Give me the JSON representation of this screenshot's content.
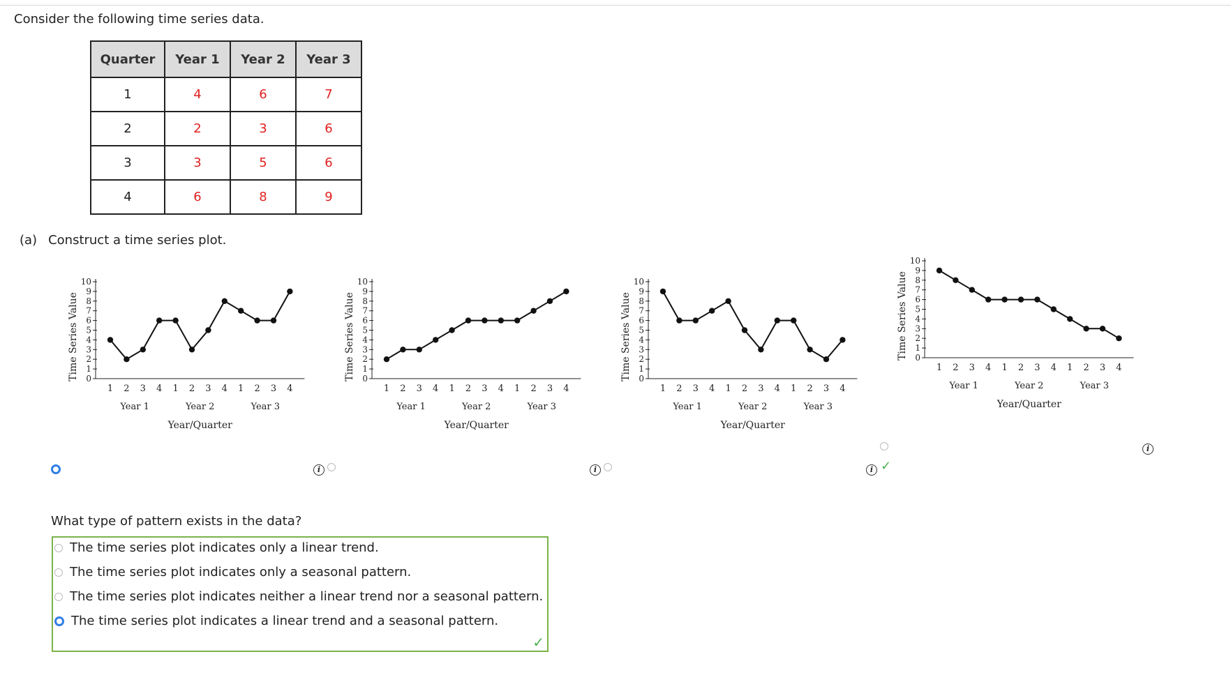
{
  "intro": "Consider the following time series data.",
  "table": {
    "headers": [
      "Quarter",
      "Year 1",
      "Year 2",
      "Year 3"
    ],
    "rows": [
      [
        "1",
        "4",
        "6",
        "7"
      ],
      [
        "2",
        "2",
        "3",
        "6"
      ],
      [
        "3",
        "3",
        "5",
        "6"
      ],
      [
        "4",
        "6",
        "8",
        "9"
      ]
    ]
  },
  "part_a": {
    "label": "(a)",
    "text": "Construct a time series plot."
  },
  "colors": {
    "accent": "#2f7ee6",
    "correct": "#4caf50",
    "value_red": "#e02020",
    "box_border": "#7bb24a"
  },
  "chart_data": [
    {
      "type": "line",
      "ylabel": "Time Series Value",
      "xlabel": "Year/Quarter",
      "ylim": [
        0,
        10
      ],
      "yticks": [
        "0",
        "1",
        "2",
        "3",
        "4",
        "5",
        "6",
        "7",
        "8",
        "9",
        "10"
      ],
      "quarters": [
        "1",
        "2",
        "3",
        "4",
        "1",
        "2",
        "3",
        "4",
        "1",
        "2",
        "3",
        "4"
      ],
      "years": [
        "Year 1",
        "Year 2",
        "Year 3"
      ],
      "values": [
        4,
        2,
        3,
        6,
        6,
        3,
        5,
        8,
        7,
        6,
        6,
        9
      ],
      "selected": true
    },
    {
      "type": "line",
      "ylabel": "Time Series Value",
      "xlabel": "Year/Quarter",
      "ylim": [
        0,
        10
      ],
      "yticks": [
        "0",
        "1",
        "2",
        "3",
        "4",
        "5",
        "6",
        "7",
        "8",
        "9",
        "10"
      ],
      "quarters": [
        "1",
        "2",
        "3",
        "4",
        "1",
        "2",
        "3",
        "4",
        "1",
        "2",
        "3",
        "4"
      ],
      "years": [
        "Year 1",
        "Year 2",
        "Year 3"
      ],
      "values": [
        2,
        3,
        3,
        4,
        5,
        6,
        6,
        6,
        6,
        7,
        8,
        9
      ],
      "selected": false
    },
    {
      "type": "line",
      "ylabel": "Time Series Value",
      "xlabel": "Year/Quarter",
      "ylim": [
        0,
        10
      ],
      "yticks": [
        "0",
        "1",
        "2",
        "3",
        "4",
        "5",
        "6",
        "7",
        "8",
        "9",
        "10"
      ],
      "quarters": [
        "1",
        "2",
        "3",
        "4",
        "1",
        "2",
        "3",
        "4",
        "1",
        "2",
        "3",
        "4"
      ],
      "years": [
        "Year 1",
        "Year 2",
        "Year 3"
      ],
      "values": [
        9,
        6,
        6,
        7,
        8,
        5,
        3,
        6,
        6,
        3,
        2,
        4
      ],
      "selected": false
    },
    {
      "type": "line",
      "ylabel": "Time Series Value",
      "xlabel": "Year/Quarter",
      "ylim": [
        0,
        10
      ],
      "yticks": [
        "0",
        "1",
        "2",
        "3",
        "4",
        "5",
        "6",
        "7",
        "8",
        "9",
        "10"
      ],
      "quarters": [
        "1",
        "2",
        "3",
        "4",
        "1",
        "2",
        "3",
        "4",
        "1",
        "2",
        "3",
        "4"
      ],
      "years": [
        "Year 1",
        "Year 2",
        "Year 3"
      ],
      "values": [
        9,
        8,
        7,
        6,
        6,
        6,
        6,
        5,
        4,
        3,
        3,
        2
      ],
      "selected": false
    }
  ],
  "question": "What type of pattern exists in the data?",
  "options": [
    {
      "text": "The time series plot indicates only a linear trend.",
      "selected": false
    },
    {
      "text": "The time series plot indicates only a seasonal pattern.",
      "selected": false
    },
    {
      "text": "The time series plot indicates neither a linear trend nor a seasonal pattern.",
      "selected": false
    },
    {
      "text": "The time series plot indicates a linear trend and a seasonal pattern.",
      "selected": true
    }
  ]
}
